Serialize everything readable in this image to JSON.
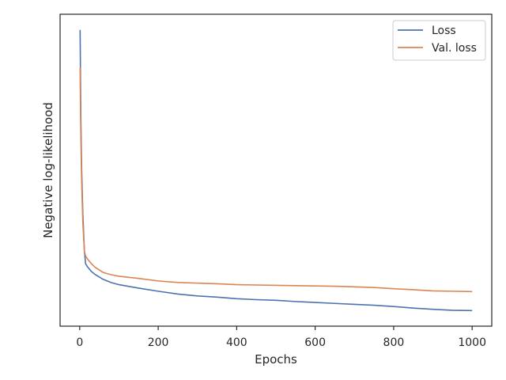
{
  "chart_data": {
    "type": "line",
    "title": "",
    "xlabel": "Epochs",
    "ylabel": "Negative log-likelihood",
    "xlim": [
      -50,
      1050
    ],
    "ylim": [
      0.0,
      1.0
    ],
    "x_ticks": [
      0,
      200,
      400,
      600,
      800,
      1000
    ],
    "y_ticks_visible": false,
    "grid": false,
    "legend_position": "top-right",
    "series": [
      {
        "name": "Loss",
        "color": "#4c72b0",
        "x": [
          1,
          2,
          3,
          5,
          8,
          12,
          15,
          20,
          30,
          40,
          60,
          80,
          100,
          150,
          200,
          250,
          300,
          350,
          400,
          450,
          500,
          550,
          600,
          650,
          700,
          750,
          800,
          850,
          900,
          950,
          1000
        ],
        "y": [
          0.95,
          0.8,
          0.66,
          0.5,
          0.36,
          0.24,
          0.2,
          0.19,
          0.175,
          0.165,
          0.15,
          0.14,
          0.133,
          0.122,
          0.112,
          0.103,
          0.097,
          0.093,
          0.088,
          0.085,
          0.083,
          0.079,
          0.076,
          0.073,
          0.07,
          0.067,
          0.063,
          0.058,
          0.054,
          0.051,
          0.05
        ]
      },
      {
        "name": "Val. loss",
        "color": "#dd8452",
        "x": [
          1,
          2,
          3,
          5,
          8,
          12,
          15,
          20,
          30,
          40,
          60,
          80,
          100,
          150,
          200,
          250,
          300,
          350,
          400,
          450,
          500,
          550,
          600,
          650,
          700,
          750,
          800,
          850,
          900,
          950,
          1000
        ],
        "y": [
          0.83,
          0.7,
          0.6,
          0.46,
          0.33,
          0.24,
          0.225,
          0.215,
          0.2,
          0.188,
          0.172,
          0.165,
          0.16,
          0.153,
          0.145,
          0.14,
          0.138,
          0.136,
          0.133,
          0.132,
          0.131,
          0.13,
          0.129,
          0.128,
          0.126,
          0.124,
          0.12,
          0.117,
          0.113,
          0.112,
          0.111
        ]
      }
    ]
  }
}
